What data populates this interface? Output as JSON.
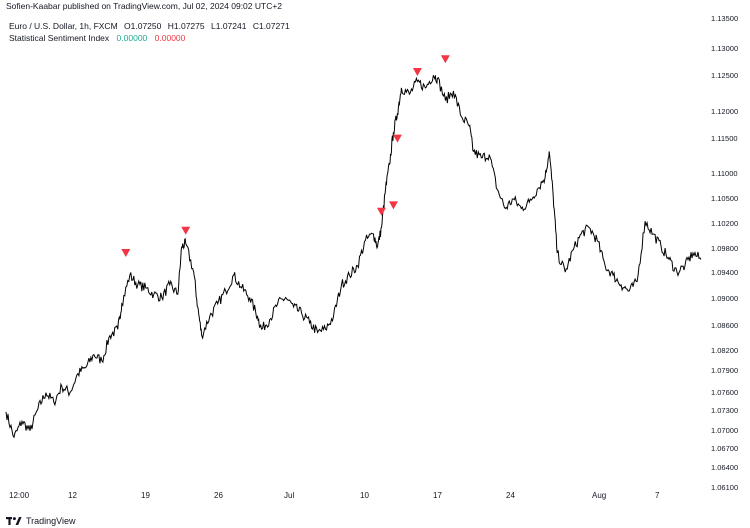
{
  "header": {
    "publisher": "Sofien-Kaabar published on TradingView.com, Jul 02, 2024 09:02 UTC+2"
  },
  "legend": {
    "symbol": "Euro / U.S. Dollar, 1h, FXCM",
    "open": "O1.07250",
    "high": "H1.07275",
    "low": "L1.07241",
    "close": "C1.07271",
    "indicator_name": "Statistical Sentiment Index",
    "indicator_value_1": "0.00000",
    "indicator_value_2": "0.00000"
  },
  "footer": {
    "brand": "TradingView"
  },
  "colors": {
    "price_line": "#000000",
    "signal": "#f23645",
    "axis_text": "#131722",
    "indicator_green": "#22ab94"
  },
  "chart_data": {
    "type": "line",
    "y_ticks": [
      "1.13500",
      "1.13000",
      "1.12500",
      "1.12000",
      "1.11500",
      "1.11000",
      "1.10500",
      "1.10200",
      "1.09800",
      "1.09400",
      "1.09000",
      "1.08600",
      "1.08200",
      "1.07900",
      "1.07600",
      "1.07300",
      "1.07000",
      "1.06700",
      "1.06400",
      "1.06100"
    ],
    "x_ticks": [
      "12:00",
      "12",
      "19",
      "26",
      "Jul",
      "10",
      "17",
      "24",
      "Aug",
      "7"
    ],
    "ylim": [
      1.061,
      1.135
    ],
    "price_path": [
      [
        0,
        1.073
      ],
      [
        2,
        1.069
      ],
      [
        4,
        1.0715
      ],
      [
        6,
        1.07
      ],
      [
        8,
        1.0735
      ],
      [
        10,
        1.076
      ],
      [
        12,
        1.0745
      ],
      [
        14,
        1.077
      ],
      [
        16,
        1.076
      ],
      [
        18,
        1.079
      ],
      [
        20,
        1.08
      ],
      [
        22,
        1.082
      ],
      [
        24,
        1.081
      ],
      [
        26,
        1.085
      ],
      [
        28,
        1.086
      ],
      [
        29,
        1.09
      ],
      [
        31,
        1.0945
      ],
      [
        33,
        1.093
      ],
      [
        35,
        1.0925
      ],
      [
        37,
        1.0915
      ],
      [
        39,
        1.091
      ],
      [
        41,
        1.093
      ],
      [
        43,
        1.0915
      ],
      [
        44,
        1.099
      ],
      [
        45,
        1.0995
      ],
      [
        47,
        1.095
      ],
      [
        48,
        1.0895
      ],
      [
        49,
        1.085
      ],
      [
        51,
        1.088
      ],
      [
        53,
        1.09
      ],
      [
        55,
        1.092
      ],
      [
        57,
        1.0945
      ],
      [
        59,
        1.0925
      ],
      [
        61,
        1.091
      ],
      [
        63,
        1.088
      ],
      [
        64,
        1.086
      ],
      [
        66,
        1.0875
      ],
      [
        68,
        1.09
      ],
      [
        70,
        1.091
      ],
      [
        72,
        1.0895
      ],
      [
        74,
        1.0885
      ],
      [
        76,
        1.087
      ],
      [
        78,
        1.0855
      ],
      [
        80,
        1.086
      ],
      [
        82,
        1.088
      ],
      [
        84,
        1.093
      ],
      [
        86,
        1.0945
      ],
      [
        88,
        1.096
      ],
      [
        90,
        1.1
      ],
      [
        92,
        1.101
      ],
      [
        93,
        1.099
      ],
      [
        94,
        1.102
      ],
      [
        95,
        1.108
      ],
      [
        96,
        1.112
      ],
      [
        97,
        1.117
      ],
      [
        98,
        1.12
      ],
      [
        99,
        1.124
      ],
      [
        101,
        1.123
      ],
      [
        103,
        1.125
      ],
      [
        105,
        1.124
      ],
      [
        107,
        1.126
      ],
      [
        108,
        1.1255
      ],
      [
        110,
        1.122
      ],
      [
        112,
        1.1235
      ],
      [
        114,
        1.1195
      ],
      [
        116,
        1.118
      ],
      [
        117,
        1.114
      ],
      [
        119,
        1.113
      ],
      [
        121,
        1.1135
      ],
      [
        123,
        1.108
      ],
      [
        125,
        1.105
      ],
      [
        127,
        1.1065
      ],
      [
        129,
        1.105
      ],
      [
        131,
        1.106
      ],
      [
        133,
        1.108
      ],
      [
        135,
        1.11
      ],
      [
        136,
        1.114
      ],
      [
        137,
        1.107
      ],
      [
        138,
        1.098
      ],
      [
        140,
        1.095
      ],
      [
        142,
        1.0985
      ],
      [
        144,
        1.101
      ],
      [
        146,
        1.102
      ],
      [
        148,
        1.1
      ],
      [
        150,
        1.096
      ],
      [
        152,
        1.0945
      ],
      [
        154,
        1.093
      ],
      [
        156,
        1.092
      ],
      [
        158,
        1.0935
      ],
      [
        160,
        1.103
      ],
      [
        162,
        1.101
      ],
      [
        164,
        1.099
      ],
      [
        166,
        1.097
      ],
      [
        168,
        1.095
      ],
      [
        170,
        1.096
      ],
      [
        172,
        1.098
      ],
      [
        174,
        1.097
      ]
    ],
    "signals": [
      {
        "x": 30,
        "y": 1.098
      },
      {
        "x": 45,
        "y": 1.1015
      },
      {
        "x": 94,
        "y": 1.1045
      },
      {
        "x": 97,
        "y": 1.1055
      },
      {
        "x": 98,
        "y": 1.116
      },
      {
        "x": 103,
        "y": 1.1265
      },
      {
        "x": 110,
        "y": 1.1285
      }
    ],
    "x_tick_positions": [
      0,
      15,
      33,
      51,
      68,
      86,
      103,
      121,
      142,
      158
    ],
    "xlim": [
      0,
      175
    ],
    "legend_position": "top-left",
    "grid": false
  }
}
